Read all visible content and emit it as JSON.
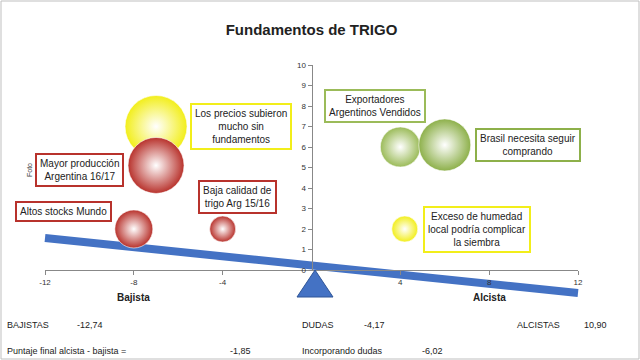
{
  "chart_data": {
    "type": "scatter",
    "marker": "bubble",
    "title": "Fundamentos de TRIGO",
    "x": [
      -7,
      -7,
      -8,
      -4,
      4,
      6,
      4.2
    ],
    "y": [
      7,
      5.1,
      2,
      2,
      6,
      6.1,
      2
    ],
    "size": [
      62,
      56,
      38,
      26,
      40,
      52,
      26
    ],
    "colors": [
      "#f2ee1a",
      "#b8322c",
      "#b8322c",
      "#b8322c",
      "#9bbb59",
      "#8db04a",
      "#f2ee1a"
    ],
    "labels": [
      "Los precios subieron\nmucho sin\nfundamentos",
      "Mayor producción\nArgentina 16/17",
      "Altos stocks Mundo",
      "Baja calidad de\ntrigo Arg 15/16",
      "Exportadores\nArgentinos Vendidos",
      "Brasil necesita seguir\ncomprando",
      "Exceso de humedad\nlocal podría complicar\nla siembra"
    ],
    "xlim": [
      -12,
      12
    ],
    "xticks": [
      -12,
      -8,
      -4,
      4,
      8,
      12
    ],
    "ylim": [
      0,
      10
    ],
    "yticks": [
      0,
      1,
      2,
      3,
      4,
      5,
      6,
      7,
      8,
      9,
      10
    ],
    "grid": false,
    "side_labels": [
      {
        "text": "Bajista",
        "x": -8
      },
      {
        "text": "Alcista",
        "x": 8
      }
    ],
    "note": "Foto",
    "summary": [
      [
        {
          "label": "BAJISTAS",
          "value": "-12,74"
        },
        {
          "label": "DUDAS",
          "value": "-4,17"
        },
        {
          "label": "ALCISTAS",
          "value": "10,90"
        }
      ],
      [
        {
          "label": "Puntaje final alcista - bajista =",
          "value": "-1,85"
        },
        {
          "label": "Incorporando dudas",
          "value": "-6,02"
        }
      ]
    ]
  }
}
